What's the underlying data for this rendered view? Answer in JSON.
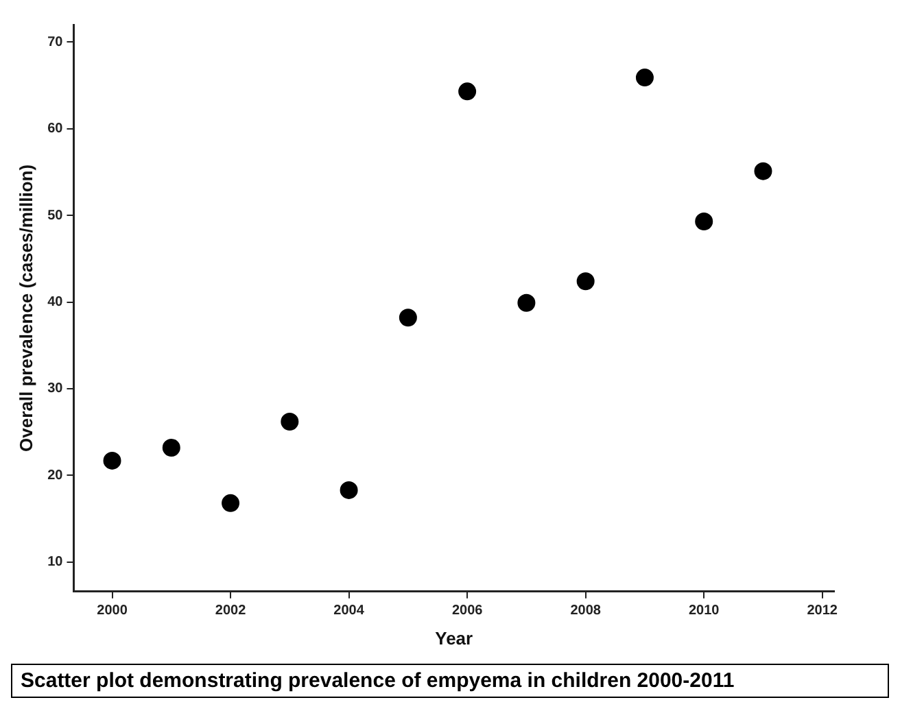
{
  "chart_data": {
    "type": "scatter",
    "xlabel": "Year",
    "ylabel": "Overall prevalence (cases/million)",
    "x": [
      2000,
      2001,
      2002,
      2003,
      2004,
      2005,
      2006,
      2007,
      2008,
      2009,
      2010,
      2011
    ],
    "values": [
      21.7,
      23.2,
      16.8,
      26.2,
      18.3,
      38.2,
      64.3,
      39.9,
      42.4,
      65.9,
      49.3,
      55.1
    ],
    "color": "#000000",
    "marker": "circle",
    "xlim": [
      1999.35,
      2012.2
    ],
    "xticks": [
      2000,
      2002,
      2004,
      2006,
      2008,
      2010,
      2012
    ],
    "ylim": [
      6.6,
      72
    ],
    "yticks": [
      10,
      20,
      30,
      40,
      50,
      60,
      70
    ],
    "grid": false,
    "legend": false,
    "annotations": [
      "Scatter plot demonstrating prevalence of empyema in children 2000-2011"
    ]
  }
}
